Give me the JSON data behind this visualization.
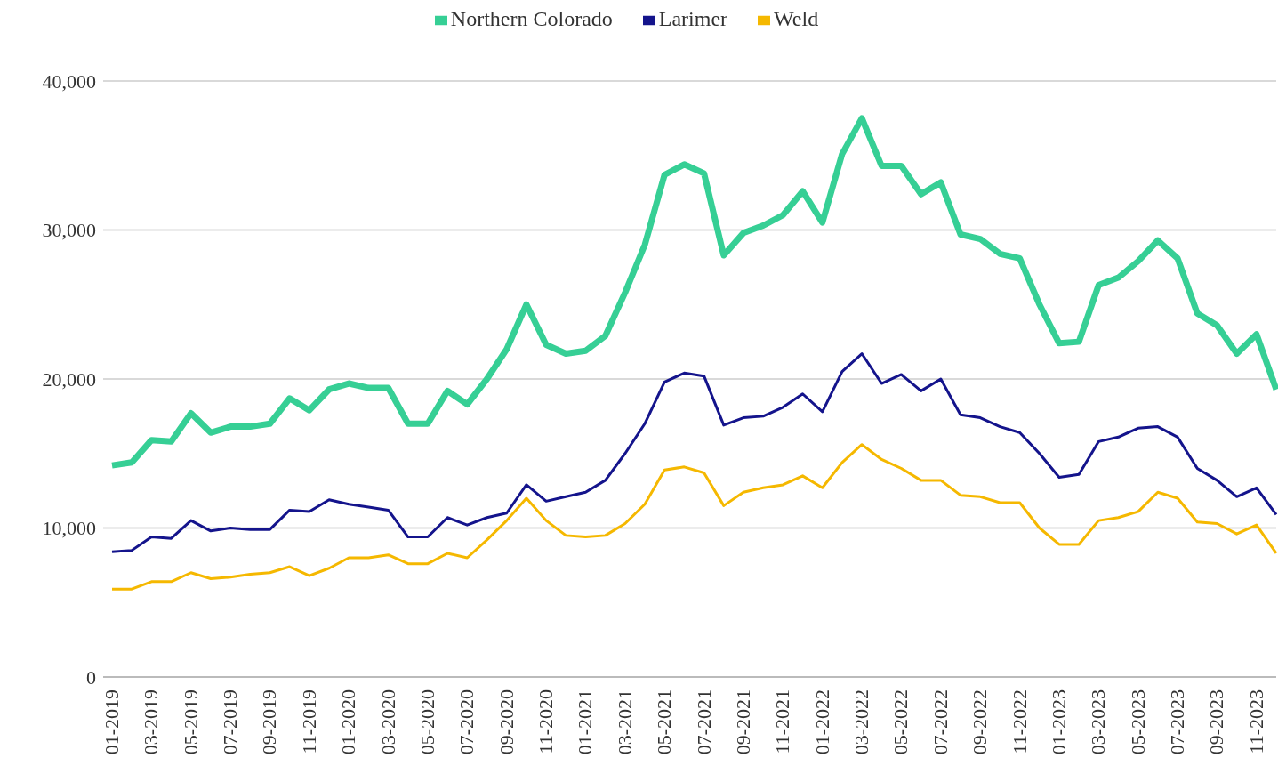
{
  "chart_data": {
    "type": "line",
    "categories": [
      "01-2019",
      null,
      "03-2019",
      null,
      "05-2019",
      null,
      "07-2019",
      null,
      "09-2019",
      null,
      "11-2019",
      null,
      "01-2020",
      null,
      "03-2020",
      null,
      "05-2020",
      null,
      "07-2020",
      null,
      "09-2020",
      null,
      "11-2020",
      null,
      "01-2021",
      null,
      "03-2021",
      null,
      "05-2021",
      null,
      "07-2021",
      null,
      "09-2021",
      null,
      "11-2021",
      null,
      "01-2022",
      null,
      "03-2022",
      null,
      "05-2022",
      null,
      "07-2022",
      null,
      "09-2022",
      null,
      "11-2022",
      null,
      "01-2023",
      null,
      "03-2023",
      null,
      "05-2023",
      null,
      "07-2023",
      null,
      "09-2023",
      null,
      "11-2023",
      null
    ],
    "series": [
      {
        "name": "Northern Colorado",
        "color": "#36cf95",
        "values": [
          14200,
          14400,
          15900,
          15800,
          17700,
          16400,
          16800,
          16800,
          17000,
          18700,
          17900,
          19300,
          19700,
          19400,
          19400,
          17000,
          17000,
          19200,
          18300,
          20000,
          22000,
          25000,
          22300,
          21700,
          21900,
          22900,
          25800,
          29000,
          33700,
          34400,
          33800,
          28300,
          29800,
          30300,
          31000,
          32600,
          30500,
          35100,
          37500,
          34300,
          34300,
          32400,
          33200,
          29700,
          29400,
          28400,
          28100,
          25000,
          22400,
          22500,
          26300,
          26800,
          27900,
          29300,
          28100,
          24400,
          23600,
          21700,
          23000,
          19300
        ]
      },
      {
        "name": "Larimer",
        "color": "#14148c",
        "values": [
          8400,
          8500,
          9400,
          9300,
          10500,
          9800,
          10000,
          9900,
          9900,
          11200,
          11100,
          11900,
          11600,
          11400,
          11200,
          9400,
          9400,
          10700,
          10200,
          10700,
          11000,
          12900,
          11800,
          12100,
          12400,
          13200,
          15000,
          17000,
          19800,
          20400,
          20200,
          16900,
          17400,
          17500,
          18100,
          19000,
          17800,
          20500,
          21700,
          19700,
          20300,
          19200,
          20000,
          17600,
          17400,
          16800,
          16400,
          15000,
          13400,
          13600,
          15800,
          16100,
          16700,
          16800,
          16100,
          14000,
          13200,
          12100,
          12700,
          10900
        ]
      },
      {
        "name": "Weld",
        "color": "#f5b800",
        "values": [
          5900,
          5900,
          6400,
          6400,
          7000,
          6600,
          6700,
          6900,
          7000,
          7400,
          6800,
          7300,
          8000,
          8000,
          8200,
          7600,
          7600,
          8300,
          8000,
          9200,
          10500,
          12000,
          10500,
          9500,
          9400,
          9500,
          10300,
          11600,
          13900,
          14100,
          13700,
          11500,
          12400,
          12700,
          12900,
          13500,
          12700,
          14400,
          15600,
          14600,
          14000,
          13200,
          13200,
          12200,
          12100,
          11700,
          11700,
          10000,
          8900,
          8900,
          10500,
          10700,
          11100,
          12400,
          12000,
          10400,
          10300,
          9600,
          10200,
          8300
        ]
      }
    ],
    "ylim": [
      0,
      40000
    ],
    "yticks": [
      0,
      {
        "value": 10000,
        "label": "10,000"
      },
      {
        "value": 20000,
        "label": "20,000"
      },
      {
        "value": 30000,
        "label": "30,000"
      },
      {
        "value": 40000,
        "label": "40,000"
      }
    ],
    "grid": "y",
    "legend": "top",
    "marker": "none",
    "line_style": "solid"
  }
}
